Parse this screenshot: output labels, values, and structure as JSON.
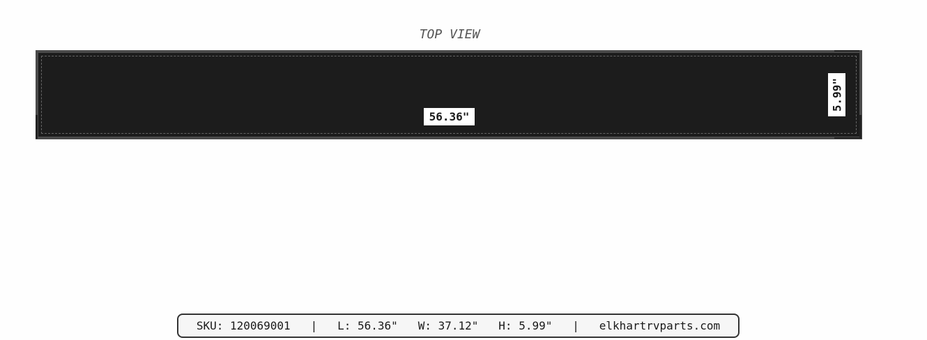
{
  "view_title": "TOP VIEW",
  "dimensions": {
    "length_label": "56.36\"",
    "height_label": "5.99\""
  },
  "colors": {
    "board": "#1c1c1c",
    "border": "#4a4a4a",
    "dash": "#666666"
  },
  "footer": {
    "text": "SKU: 120069001   |   L: 56.36\"   W: 37.12\"   H: 5.99\"   |   elkhartrvparts.com"
  }
}
